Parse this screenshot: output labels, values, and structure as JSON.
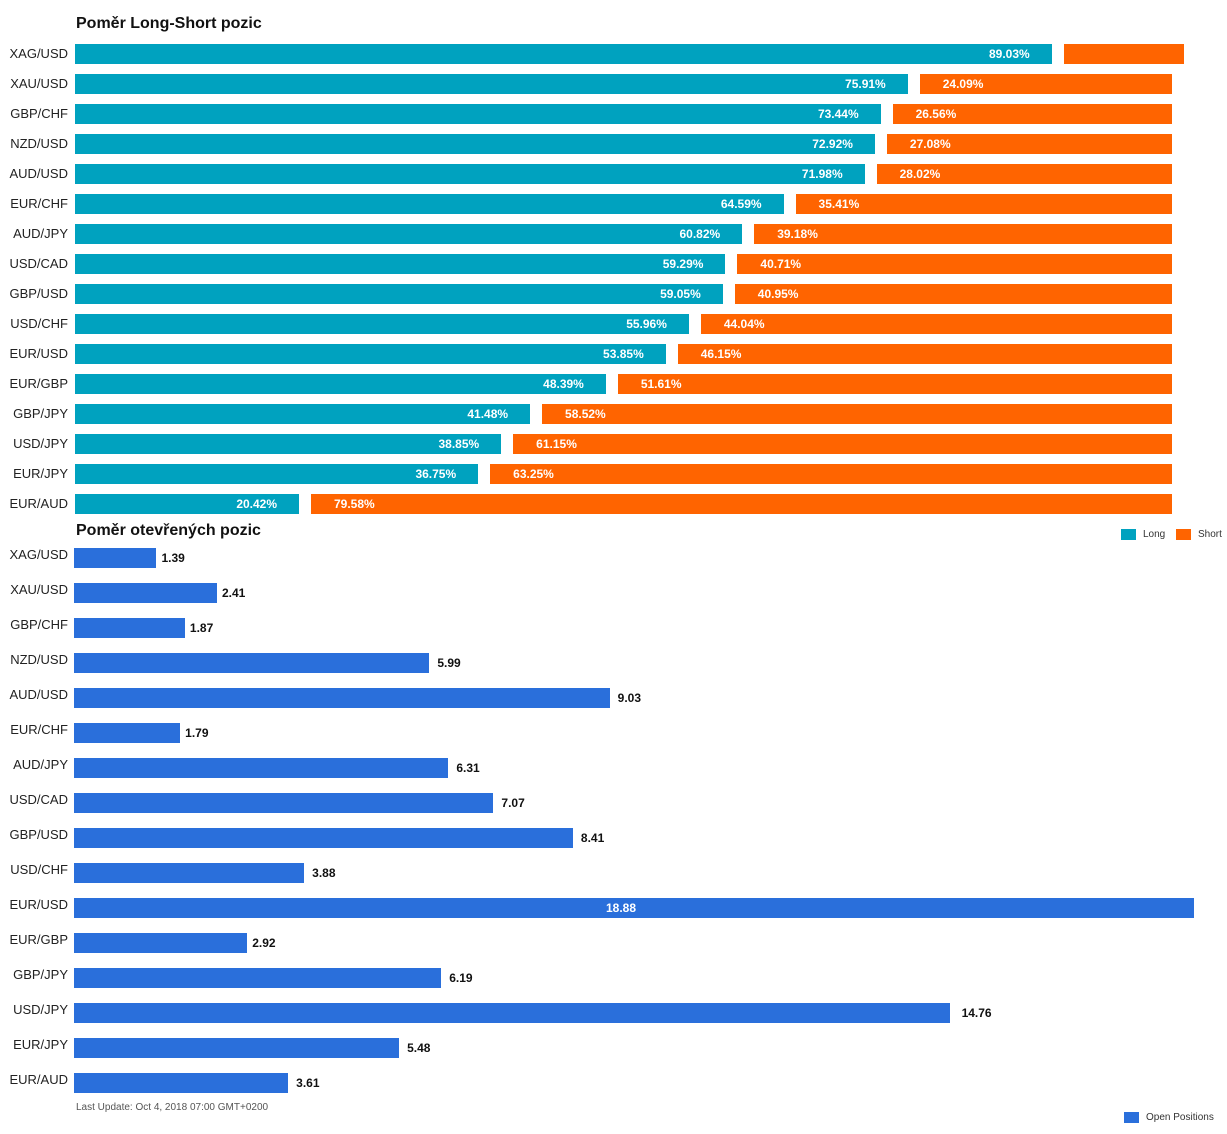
{
  "colors": {
    "long": "#00a2bf",
    "short": "#ff6400",
    "open": "#2a6fdb"
  },
  "chart_data": [
    {
      "type": "bar",
      "orientation": "horizontal",
      "stacked": "percent",
      "title": "Poměr Long-Short pozic",
      "categories": [
        "XAG/USD",
        "XAU/USD",
        "GBP/CHF",
        "NZD/USD",
        "AUD/USD",
        "EUR/CHF",
        "AUD/JPY",
        "USD/CAD",
        "GBP/USD",
        "USD/CHF",
        "EUR/USD",
        "EUR/GBP",
        "GBP/JPY",
        "USD/JPY",
        "EUR/JPY",
        "EUR/AUD"
      ],
      "series": [
        {
          "name": "Long",
          "values": [
            89.03,
            75.91,
            73.44,
            72.92,
            71.98,
            64.59,
            60.82,
            59.29,
            59.05,
            55.96,
            53.85,
            48.39,
            41.48,
            38.85,
            36.75,
            20.42
          ],
          "labels": [
            "89.03%",
            "75.91%",
            "73.44%",
            "72.92%",
            "71.98%",
            "64.59%",
            "60.82%",
            "59.29%",
            "59.05%",
            "55.96%",
            "53.85%",
            "48.39%",
            "41.48%",
            "38.85%",
            "36.75%",
            "20.42%"
          ]
        },
        {
          "name": "Short",
          "values": [
            10.97,
            24.09,
            26.56,
            27.08,
            28.02,
            35.41,
            39.18,
            40.71,
            40.95,
            44.04,
            46.15,
            51.61,
            58.52,
            61.15,
            63.25,
            79.58
          ],
          "labels": [
            "",
            "24.09%",
            "26.56%",
            "27.08%",
            "28.02%",
            "35.41%",
            "39.18%",
            "40.71%",
            "40.95%",
            "44.04%",
            "46.15%",
            "51.61%",
            "58.52%",
            "61.15%",
            "63.25%",
            "79.58%"
          ]
        }
      ],
      "xlim": [
        0,
        100
      ],
      "legend": "bottom-right"
    },
    {
      "type": "bar",
      "orientation": "horizontal",
      "title": "Poměr otevřených pozic",
      "categories": [
        "XAG/USD",
        "XAU/USD",
        "GBP/CHF",
        "NZD/USD",
        "AUD/USD",
        "EUR/CHF",
        "AUD/JPY",
        "USD/CAD",
        "GBP/USD",
        "USD/CHF",
        "EUR/USD",
        "EUR/GBP",
        "GBP/JPY",
        "USD/JPY",
        "EUR/JPY",
        "EUR/AUD"
      ],
      "series": [
        {
          "name": "Open Positions",
          "values": [
            1.39,
            2.41,
            1.87,
            5.99,
            9.03,
            1.79,
            6.31,
            7.07,
            8.41,
            3.88,
            18.88,
            2.92,
            6.19,
            14.76,
            5.48,
            3.61
          ],
          "labels": [
            "1.39",
            "2.41",
            "1.87",
            "5.99",
            "9.03",
            "1.79",
            "6.31",
            "7.07",
            "8.41",
            "3.88",
            "18.88",
            "2.92",
            "6.19",
            "14.76",
            "5.48",
            "3.61"
          ]
        }
      ],
      "xlim": [
        0,
        18.88
      ],
      "legend": "bottom-right"
    }
  ],
  "footer": {
    "last_update": "Last Update: Oct 4, 2018 07:00 GMT+0200"
  }
}
